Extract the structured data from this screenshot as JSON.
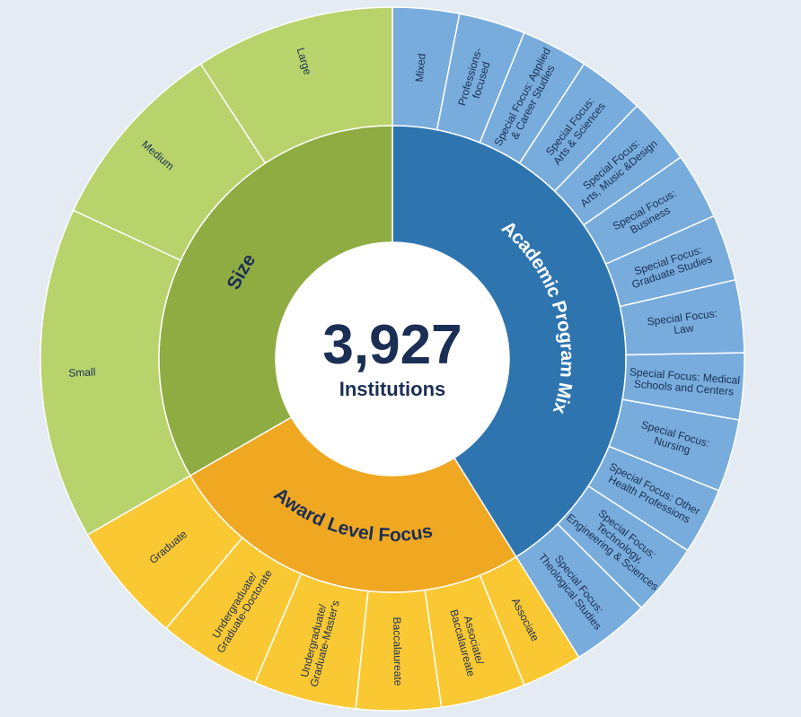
{
  "center": {
    "number": "3,927",
    "caption": "Institutions"
  },
  "colors": {
    "background": "#e4ebf2",
    "size_inner": "#8fac42",
    "size_outer": "#b8d36c",
    "program_inner": "#2e75b0",
    "program_outer": "#78acdc",
    "award_inner": "#f0a823",
    "award_outer": "#f9c833",
    "inner_text_dark": "#1b2f55",
    "inner_text_light": "#ffffff",
    "divider": "#ffffff"
  },
  "groups": [
    {
      "key": "program",
      "label": "Academic Program Mix",
      "text_color": "light",
      "children": [
        {
          "name": "mixed",
          "lines": [
            "Mixed"
          ]
        },
        {
          "name": "professions-focused",
          "lines": [
            "Professions-",
            "focused"
          ]
        },
        {
          "name": "applied-career",
          "lines": [
            "Special Focus: Applied",
            "& Career Studies"
          ]
        },
        {
          "name": "arts-sciences",
          "lines": [
            "Special Focus:",
            "Arts & Sciences"
          ]
        },
        {
          "name": "arts-music-design",
          "lines": [
            "Special Focus:",
            "Arts, Music &Design"
          ]
        },
        {
          "name": "business",
          "lines": [
            "Special Focus:",
            "Business"
          ]
        },
        {
          "name": "graduate-studies",
          "lines": [
            "Special Focus:",
            "Graduate Studies"
          ]
        },
        {
          "name": "law",
          "lines": [
            "Special Focus:",
            "Law"
          ]
        },
        {
          "name": "medical",
          "lines": [
            "Special Focus: Medical",
            "Schools and Centers"
          ]
        },
        {
          "name": "nursing",
          "lines": [
            "Special Focus:",
            "Nursing"
          ]
        },
        {
          "name": "other-health",
          "lines": [
            "Special Focus: Other",
            "Health Professions"
          ]
        },
        {
          "name": "technology",
          "lines": [
            "Special Focus:",
            "Technology,",
            "Engineering & Sciences"
          ]
        },
        {
          "name": "theological",
          "lines": [
            "Special Focus:",
            "Theological Studies"
          ]
        }
      ]
    },
    {
      "key": "award",
      "label": "Award Level Focus",
      "text_color": "dark",
      "children": [
        {
          "name": "associate",
          "lines": [
            "Associate"
          ]
        },
        {
          "name": "associate-baccalaureate",
          "lines": [
            "Associate/",
            "Baccalaureate"
          ]
        },
        {
          "name": "baccalaureate",
          "lines": [
            "Baccalaureate"
          ]
        },
        {
          "name": "undergrad-masters",
          "lines": [
            "Undergraduate/",
            "Graduate-Master's"
          ]
        },
        {
          "name": "undergrad-doctorate",
          "lines": [
            "Undergraduate/",
            "Graduate-Doctorate"
          ]
        },
        {
          "name": "graduate",
          "lines": [
            "Graduate"
          ]
        }
      ]
    },
    {
      "key": "size",
      "label": "Size",
      "text_color": "dark",
      "children": [
        {
          "name": "small",
          "lines": [
            "Small"
          ]
        },
        {
          "name": "medium",
          "lines": [
            "Medium"
          ]
        },
        {
          "name": "large",
          "lines": [
            "Large"
          ]
        }
      ]
    }
  ]
}
